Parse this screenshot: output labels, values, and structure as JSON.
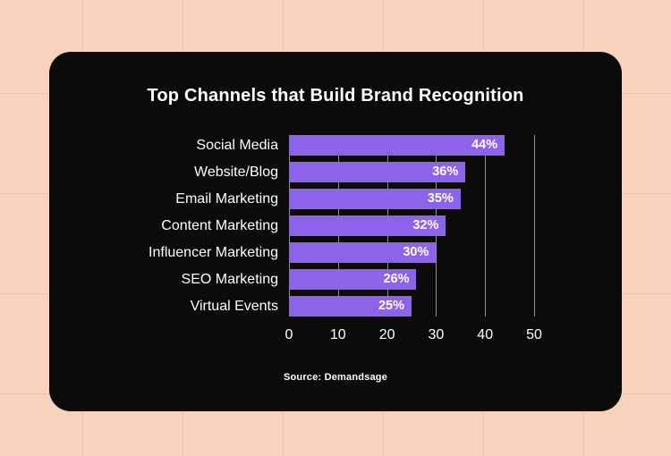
{
  "page": {
    "background_color": "#f8d2bd"
  },
  "card": {
    "background_color": "#0c0a0b"
  },
  "chart_data": {
    "type": "bar",
    "orientation": "horizontal",
    "title": "Top Channels that Build Brand Recognition",
    "categories": [
      "Social Media",
      "Website/Blog",
      "Email Marketing",
      "Content Marketing",
      "Influencer Marketing",
      "SEO Marketing",
      "Virtual Events"
    ],
    "values": [
      44,
      36,
      35,
      32,
      30,
      26,
      25
    ],
    "value_labels": [
      "44%",
      "36%",
      "35%",
      "32%",
      "30%",
      "26%",
      "25%"
    ],
    "xlim": [
      0,
      50
    ],
    "ticks": [
      0,
      10,
      20,
      30,
      40,
      50
    ],
    "grid": true,
    "legend": false,
    "bar_color": "#8d63ea",
    "text_color": "#ffffff",
    "source": "Source: Demandsage"
  }
}
